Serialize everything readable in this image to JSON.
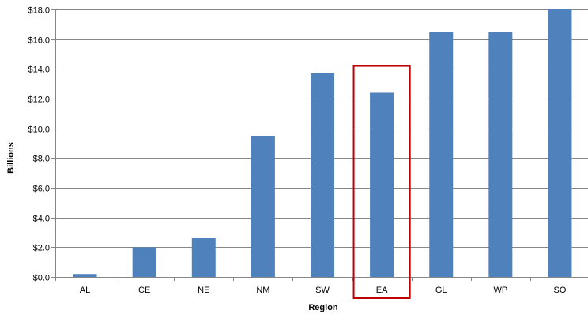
{
  "chart_data": {
    "type": "bar",
    "title": "",
    "xlabel": "Region",
    "ylabel": "Billions",
    "categories": [
      "AL",
      "CE",
      "NE",
      "NM",
      "SW",
      "EA",
      "GL",
      "WP",
      "SO"
    ],
    "values": [
      0.2,
      2.0,
      2.6,
      9.5,
      13.7,
      12.4,
      16.5,
      16.5,
      18.0
    ],
    "ylim": [
      0,
      18
    ],
    "yticks": [
      0,
      2,
      4,
      6,
      8,
      10,
      12,
      14,
      16,
      18
    ],
    "ytick_labels": [
      "$0.0",
      "$2.0",
      "$4.0",
      "$6.0",
      "$8.0",
      "$10.0",
      "$12.0",
      "$14.0",
      "$16.0",
      "$18.0"
    ],
    "grid": true,
    "legend": false,
    "highlighted_category": "EA",
    "colors": {
      "bar": "#4f81bd",
      "highlight": "#c00000",
      "grid": "#868686",
      "axis": "#868686"
    }
  }
}
